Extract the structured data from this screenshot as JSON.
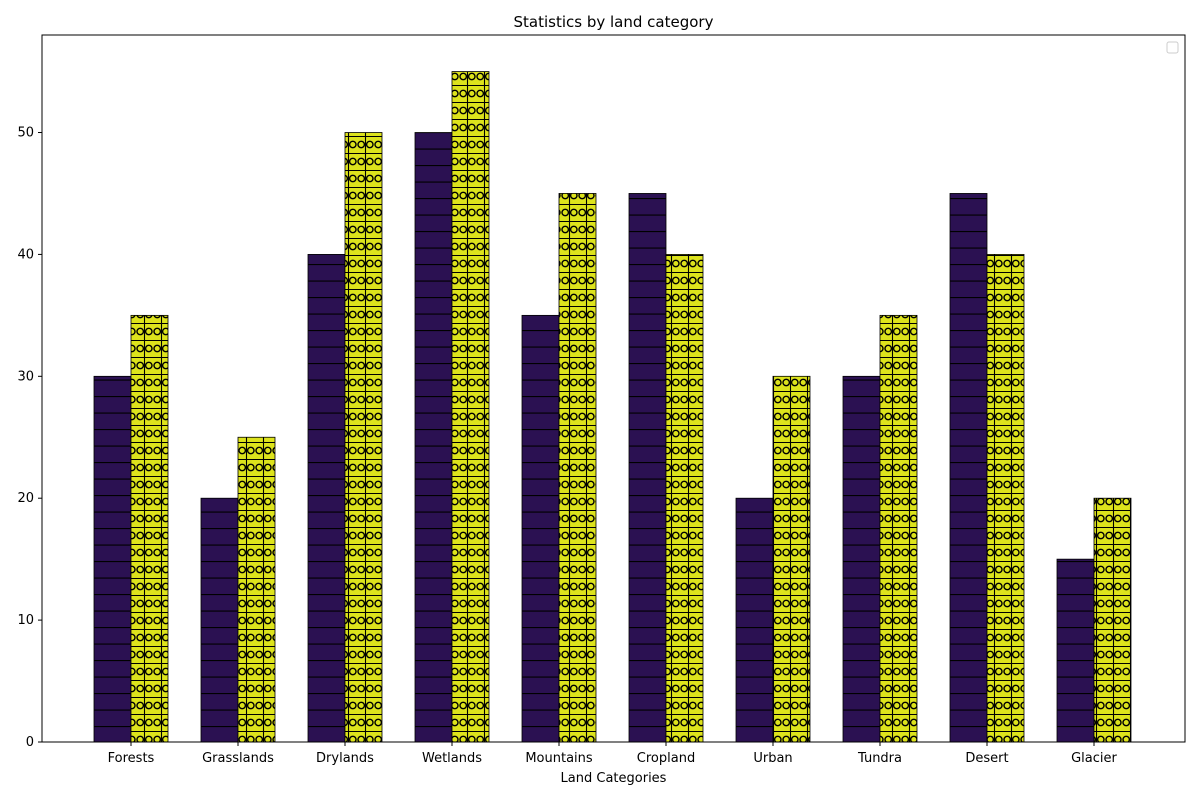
{
  "chart_data": {
    "type": "bar",
    "title": "Statistics by land category",
    "xlabel": "Land Categories",
    "ylabel": "",
    "categories": [
      "Forests",
      "Grasslands",
      "Drylands",
      "Wetlands",
      "Mountains",
      "Cropland",
      "Urban",
      "Tundra",
      "Desert",
      "Glacier"
    ],
    "series": [
      {
        "color": "#2b1152",
        "hatch": "horizontal-lines",
        "values": [
          30,
          20,
          40,
          50,
          35,
          45,
          20,
          30,
          45,
          15
        ]
      },
      {
        "color": "#dde31c",
        "hatch": "grid-circles",
        "values": [
          35,
          25,
          50,
          55,
          45,
          40,
          30,
          35,
          40,
          20
        ]
      }
    ],
    "ylim": [
      0,
      58
    ],
    "yticks": [
      0,
      10,
      20,
      30,
      40,
      50
    ],
    "grid": false,
    "legend": {
      "position": "top-right",
      "entries": []
    }
  }
}
